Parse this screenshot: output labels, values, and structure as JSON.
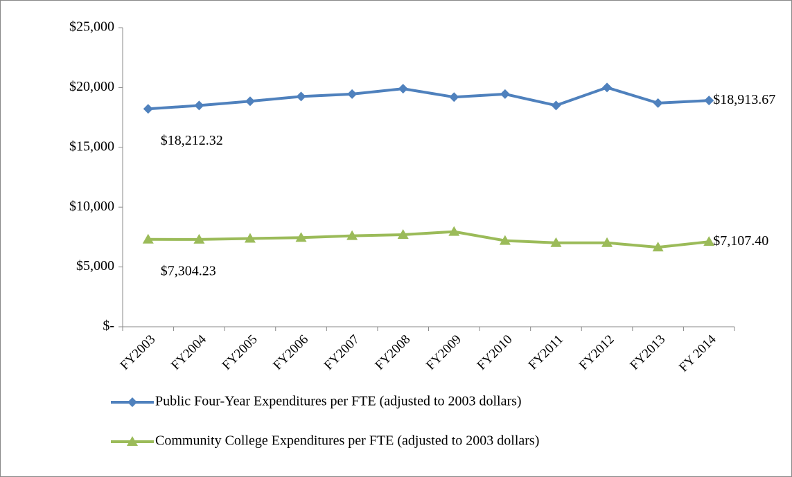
{
  "chart_data": {
    "type": "line",
    "categories": [
      "FY2003",
      "FY2004",
      "FY2005",
      "FY2006",
      "FY2007",
      "FY2008",
      "FY2009",
      "FY2010",
      "FY2011",
      "FY2012",
      "FY2013",
      "FY 2014"
    ],
    "series": [
      {
        "name": "Public Four-Year Expenditures per FTE (adjusted to 2003 dollars)",
        "color": "#4f81bd",
        "marker": "diamond",
        "values": [
          18212.32,
          18500,
          18850,
          19250,
          19450,
          19900,
          19200,
          19450,
          18500,
          20000,
          18700,
          18913.67
        ],
        "value_labels": [
          "$18,212.32",
          null,
          null,
          null,
          null,
          null,
          null,
          null,
          null,
          null,
          null,
          "$18,913.67"
        ]
      },
      {
        "name": "Community College Expenditures per FTE (adjusted to 2003 dollars)",
        "color": "#9bbb59",
        "marker": "triangle",
        "values": [
          7304.23,
          7300,
          7380,
          7450,
          7600,
          7700,
          7950,
          7200,
          7020,
          7020,
          6650,
          7107.4
        ],
        "value_labels": [
          "$7,304.23",
          null,
          null,
          null,
          null,
          null,
          null,
          null,
          null,
          null,
          null,
          "$7,107.40"
        ]
      }
    ],
    "ylim": [
      0,
      25000
    ],
    "yticks": [
      {
        "value": 0,
        "label": "$-"
      },
      {
        "value": 5000,
        "label": "$5,000"
      },
      {
        "value": 10000,
        "label": "$10,000"
      },
      {
        "value": 15000,
        "label": "$15,000"
      },
      {
        "value": 20000,
        "label": "$20,000"
      },
      {
        "value": 25000,
        "label": "$25,000"
      }
    ],
    "legend": "bottom"
  }
}
